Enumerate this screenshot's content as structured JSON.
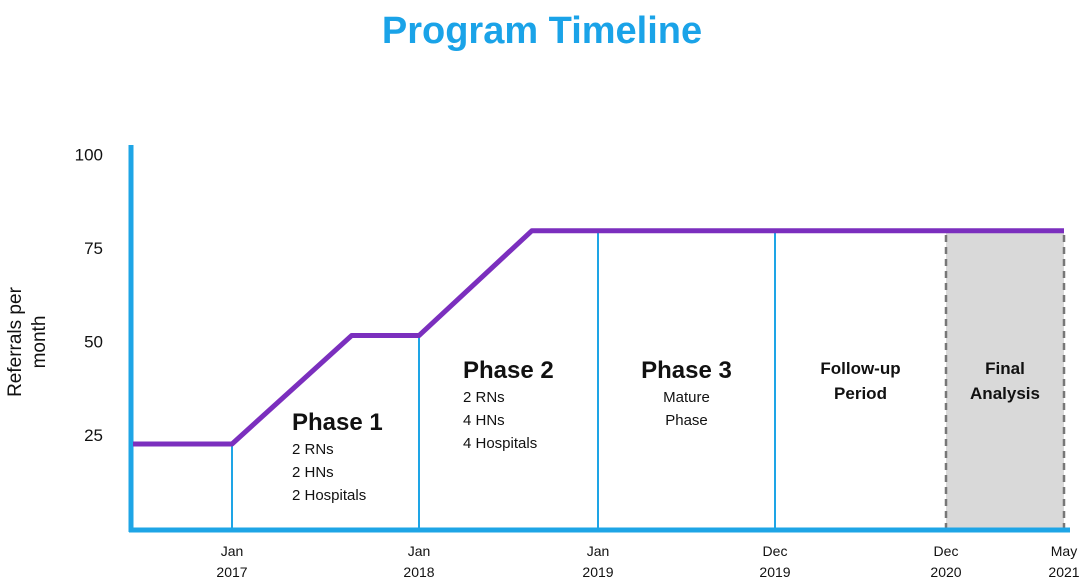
{
  "chart_data": {
    "type": "line",
    "title": "Program Timeline",
    "y_label": "Referrals per month",
    "ylim": [
      0,
      100
    ],
    "yticks": [
      25,
      50,
      75,
      100
    ],
    "xlim": [
      2016.5,
      2021.333
    ],
    "xticks": [
      {
        "value": 2017,
        "label": "Jan 2017"
      },
      {
        "value": 2018,
        "label": "Jan 2018"
      },
      {
        "value": 2019,
        "label": "Jan 2019"
      },
      {
        "value": 2019.917,
        "label": "Dec 2019"
      },
      {
        "value": 2020.917,
        "label": "Dec 2020"
      },
      {
        "value": 2021.333,
        "label": "May 2021"
      }
    ],
    "series": [
      {
        "color": "#7b2fbe",
        "x": [
          2016.5,
          2017,
          2017.64,
          2018,
          2018.63,
          2021.333
        ],
        "values": [
          23,
          23,
          52,
          52,
          80,
          80
        ]
      }
    ],
    "axis_color": "#1ea5e6",
    "shade_last_period": true,
    "phases": [
      {
        "title": "Phase 1",
        "details": [
          "2 RNs",
          "2 HNs",
          "2 Hospitals"
        ]
      },
      {
        "title": "Phase 2",
        "details": [
          "2 RNs",
          "4 HNs",
          "4 Hospitals"
        ]
      },
      {
        "title": "Phase 3",
        "details": [
          "Mature",
          "Phase"
        ]
      },
      {
        "title": "Follow-up Period",
        "details": []
      },
      {
        "title": "Final Analysis",
        "details": []
      }
    ]
  }
}
